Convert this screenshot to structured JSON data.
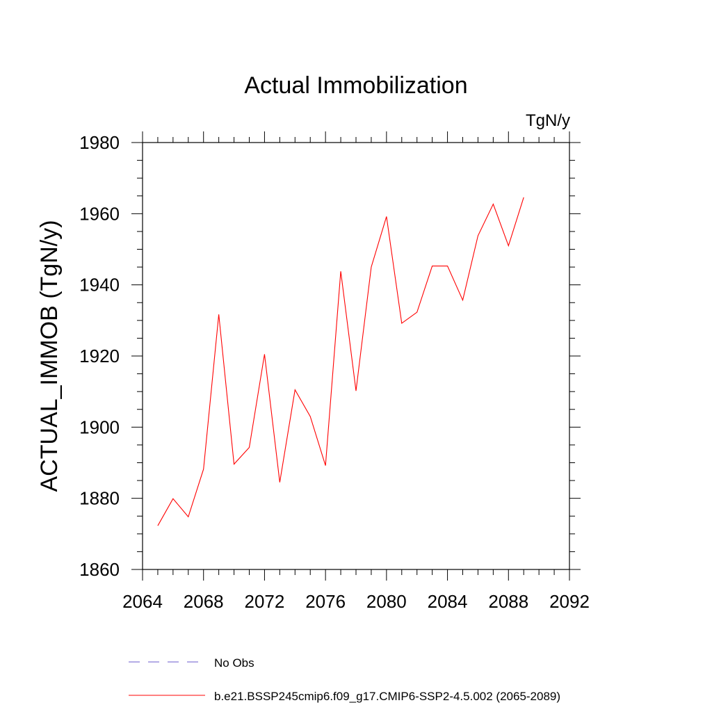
{
  "chart_data": {
    "type": "line",
    "title": "Actual Immobilization",
    "units": "TgN/y",
    "ylabel": "ACTUAL_IMMOB  (TgN/y)",
    "xlabel": "",
    "xlim": [
      2064,
      2092
    ],
    "ylim": [
      1860,
      1980
    ],
    "xticks": [
      2064,
      2068,
      2072,
      2076,
      2080,
      2084,
      2088,
      2092
    ],
    "yticks": [
      1860,
      1880,
      1900,
      1920,
      1940,
      1960,
      1980
    ],
    "x_minor_step": 1,
    "y_minor_step": 5,
    "series": [
      {
        "name": "No Obs",
        "color": "#6a5acd",
        "dash": true,
        "x": [],
        "values": []
      },
      {
        "name": "b.e21.BSSP245cmip6.f09_g17.CMIP6-SSP2-4.5.002 (2065-2089)",
        "color": "#ff0000",
        "dash": false,
        "x": [
          2065,
          2066,
          2067,
          2068,
          2069,
          2070,
          2071,
          2072,
          2073,
          2074,
          2075,
          2076,
          2077,
          2078,
          2079,
          2080,
          2081,
          2082,
          2083,
          2084,
          2085,
          2086,
          2087,
          2088,
          2089
        ],
        "values": [
          1872.3,
          1879.9,
          1874.8,
          1888.2,
          1931.7,
          1889.6,
          1894.3,
          1920.5,
          1884.5,
          1910.5,
          1903.0,
          1889.2,
          1943.8,
          1910.2,
          1945.0,
          1959.2,
          1929.2,
          1932.3,
          1945.3,
          1945.3,
          1935.7,
          1953.8,
          1962.7,
          1951.0,
          1964.6
        ]
      }
    ],
    "legend": "bottom"
  }
}
